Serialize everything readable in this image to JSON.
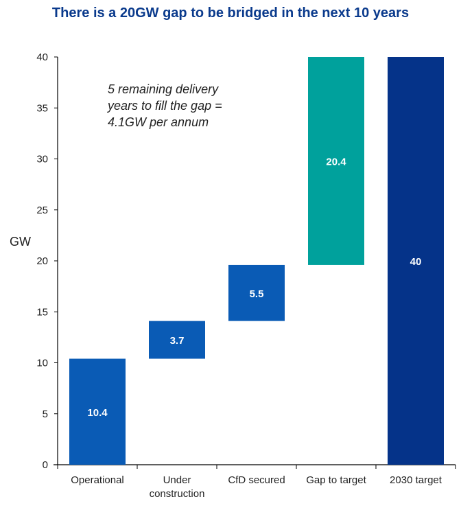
{
  "chart_data": {
    "type": "bar",
    "subtype": "waterfall",
    "title": "There is a 20GW gap to be bridged in the next 10 years",
    "ylabel": "GW",
    "xlabel": "",
    "ylim": [
      0,
      40
    ],
    "yticks": [
      0,
      5,
      10,
      15,
      20,
      25,
      30,
      35,
      40
    ],
    "grid": false,
    "legend": null,
    "categories": [
      "Operational",
      "Under construction",
      "CfD secured",
      "Gap to target",
      "2030 target"
    ],
    "category_lines": [
      [
        "Operational"
      ],
      [
        "Under",
        "construction"
      ],
      [
        "CfD secured"
      ],
      [
        "Gap to target"
      ],
      [
        "2030 target"
      ]
    ],
    "bars": [
      {
        "category": "Operational",
        "start": 0,
        "end": 10.4,
        "value": 10.4,
        "label": "10.4",
        "color": "#0a5bb5"
      },
      {
        "category": "Under construction",
        "start": 10.4,
        "end": 14.1,
        "value": 3.7,
        "label": "3.7",
        "color": "#0a5bb5"
      },
      {
        "category": "CfD secured",
        "start": 14.1,
        "end": 19.6,
        "value": 5.5,
        "label": "5.5",
        "color": "#0a5bb5"
      },
      {
        "category": "Gap to target",
        "start": 19.6,
        "end": 40,
        "value": 20.4,
        "label": "20.4",
        "color": "#00a19c"
      },
      {
        "category": "2030 target",
        "start": 0,
        "end": 40,
        "value": 40,
        "label": "40",
        "color": "#053389"
      }
    ],
    "annotation": [
      "5 remaining delivery",
      "years to fill the gap =",
      "4.1GW per annum"
    ]
  },
  "colors": {
    "title": "#0a3a8c",
    "axis": "#000000"
  }
}
